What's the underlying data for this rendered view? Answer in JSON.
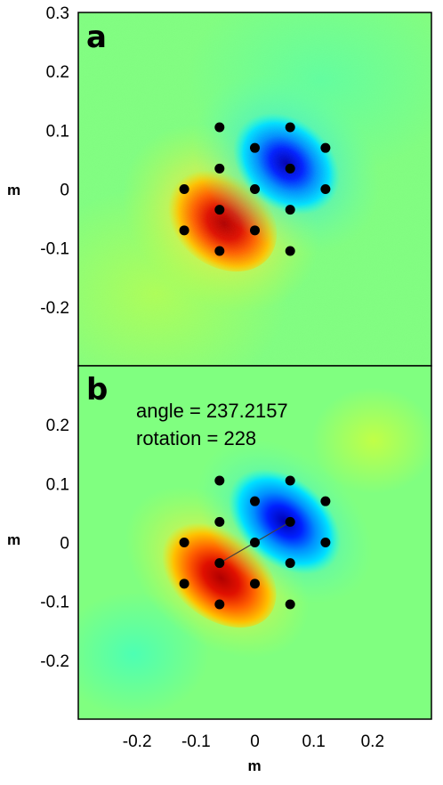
{
  "chart_data": [
    {
      "type": "heatmap",
      "panel_label": "a",
      "ylabel": "m",
      "xlim": [
        -0.3,
        0.3
      ],
      "ylim": [
        -0.3,
        0.3
      ],
      "yticks": [
        "0.3",
        "0.2",
        "0.1",
        "0",
        "-0.1",
        "-0.2"
      ],
      "ytick_values": [
        0.3,
        0.2,
        0.1,
        0,
        -0.1,
        -0.2
      ],
      "field": {
        "positive_lobe": {
          "x": -0.04,
          "y": -0.04
        },
        "negative_lobe": {
          "x": 0.05,
          "y": 0.04
        }
      },
      "points": [
        {
          "x": -0.06,
          "y": 0.105
        },
        {
          "x": 0.06,
          "y": 0.105
        },
        {
          "x": 0.0,
          "y": 0.07
        },
        {
          "x": 0.12,
          "y": 0.07
        },
        {
          "x": -0.06,
          "y": 0.035
        },
        {
          "x": 0.06,
          "y": 0.035
        },
        {
          "x": -0.12,
          "y": 0.0
        },
        {
          "x": 0.0,
          "y": 0.0
        },
        {
          "x": 0.12,
          "y": 0.0
        },
        {
          "x": -0.06,
          "y": -0.035
        },
        {
          "x": 0.06,
          "y": -0.035
        },
        {
          "x": -0.12,
          "y": -0.07
        },
        {
          "x": 0.0,
          "y": -0.07
        },
        {
          "x": -0.06,
          "y": -0.105
        },
        {
          "x": 0.06,
          "y": -0.105
        }
      ]
    },
    {
      "type": "heatmap",
      "panel_label": "b",
      "ylabel": "m",
      "xlabel": "m",
      "xlim": [
        -0.3,
        0.3
      ],
      "ylim": [
        -0.3,
        0.3
      ],
      "yticks": [
        "0.2",
        "0.1",
        "0",
        "-0.1",
        "-0.2"
      ],
      "ytick_values": [
        0.2,
        0.1,
        0,
        -0.1,
        -0.2
      ],
      "xticks": [
        "-0.2",
        "-0.1",
        "0",
        "0.1",
        "0.2"
      ],
      "xtick_values": [
        -0.2,
        -0.1,
        0,
        0.1,
        0.2
      ],
      "annotations": [
        "angle = 237.2157",
        "rotation = 228"
      ],
      "field": {
        "positive_lobe": {
          "x": -0.05,
          "y": -0.04
        },
        "negative_lobe": {
          "x": 0.05,
          "y": 0.04
        }
      },
      "line": {
        "x1": -0.06,
        "y1": -0.035,
        "x2": 0.06,
        "y2": 0.035
      },
      "points": [
        {
          "x": -0.06,
          "y": 0.105
        },
        {
          "x": 0.06,
          "y": 0.105
        },
        {
          "x": 0.0,
          "y": 0.07
        },
        {
          "x": 0.12,
          "y": 0.07
        },
        {
          "x": -0.06,
          "y": 0.035
        },
        {
          "x": 0.06,
          "y": 0.035
        },
        {
          "x": -0.12,
          "y": 0.0
        },
        {
          "x": 0.0,
          "y": 0.0
        },
        {
          "x": 0.12,
          "y": 0.0
        },
        {
          "x": -0.06,
          "y": -0.035
        },
        {
          "x": 0.06,
          "y": -0.035
        },
        {
          "x": -0.12,
          "y": -0.07
        },
        {
          "x": 0.0,
          "y": -0.07
        },
        {
          "x": -0.06,
          "y": -0.105
        },
        {
          "x": 0.06,
          "y": -0.105
        }
      ]
    }
  ],
  "colors": {
    "background_field": "#80ff80",
    "positive": "#c00000",
    "negative": "#0000c8",
    "marker": "#000000"
  }
}
